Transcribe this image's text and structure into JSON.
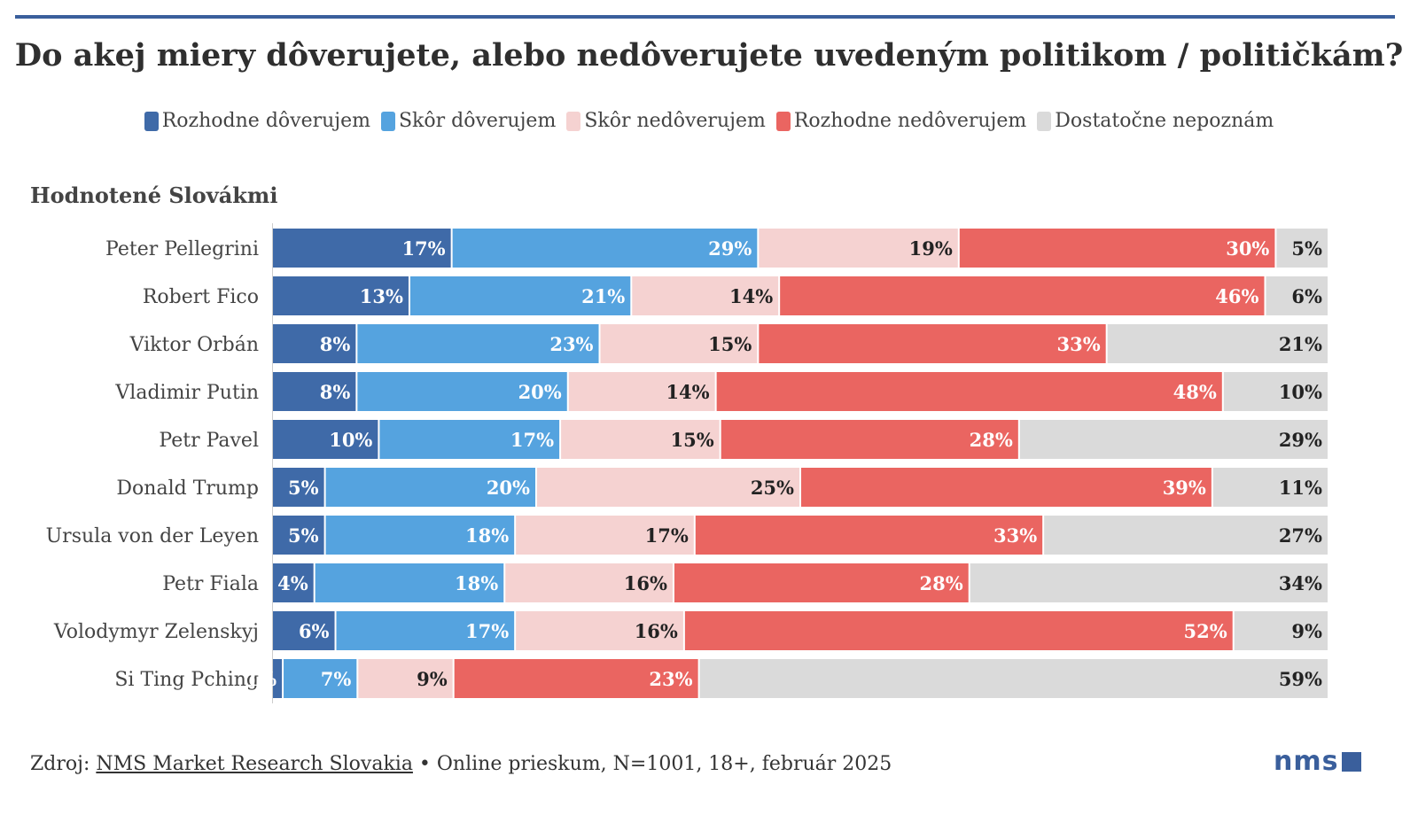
{
  "title": "Do akej miery dôverujete, alebo nedôverujete uvedeným politikom / političkám?",
  "subtitle": "Hodnotené Slovákmi",
  "colors": {
    "rozhodne_doverujem": "#3f6aa8",
    "skor_doverujem": "#55a3df",
    "skor_nedoverujem": "#f5d2d1",
    "rozhodne_nedoverujem": "#ea6561",
    "dostatocne_nepoznam": "#dadada"
  },
  "legend": [
    {
      "label": "Rozhodne dôverujem",
      "color": "#3f6aa8"
    },
    {
      "label": "Skôr dôverujem",
      "color": "#55a3df"
    },
    {
      "label": "Skôr nedôverujem",
      "color": "#f5d2d1"
    },
    {
      "label": "Rozhodne nedôverujem",
      "color": "#ea6561"
    },
    {
      "label": "Dostatočne nepoznám",
      "color": "#dadada"
    }
  ],
  "chart_data": {
    "type": "bar",
    "orientation": "horizontal",
    "stacked": true,
    "title": "Do akej miery dôverujete, alebo nedôverujete uvedeným politikom / političkám?",
    "subtitle": "Hodnotené Slovákmi",
    "unit": "%",
    "categories": [
      "Peter Pellegrini",
      "Robert Fico",
      "Viktor Orbán",
      "Vladimir Putin",
      "Petr Pavel",
      "Donald Trump",
      "Ursula von der Leyen",
      "Petr Fiala",
      "Volodymyr Zelenskyj",
      "Si Ting Pching"
    ],
    "series": [
      {
        "name": "Rozhodne dôverujem",
        "color": "#3f6aa8",
        "label_color": "#ffffff",
        "values": [
          17,
          13,
          8,
          8,
          10,
          5,
          5,
          4,
          6,
          1
        ]
      },
      {
        "name": "Skôr dôverujem",
        "color": "#55a3df",
        "label_color": "#ffffff",
        "values": [
          29,
          21,
          23,
          20,
          17,
          20,
          18,
          18,
          17,
          7
        ]
      },
      {
        "name": "Skôr nedôverujem",
        "color": "#f5d2d1",
        "label_color": "#222222",
        "values": [
          19,
          14,
          15,
          14,
          15,
          25,
          17,
          16,
          16,
          9
        ]
      },
      {
        "name": "Rozhodne nedôverujem",
        "color": "#ea6561",
        "label_color": "#ffffff",
        "values": [
          30,
          46,
          33,
          48,
          28,
          39,
          33,
          28,
          52,
          23
        ]
      },
      {
        "name": "Dostatočne nepoznám",
        "color": "#dadada",
        "label_color": "#222222",
        "values": [
          5,
          6,
          21,
          10,
          29,
          11,
          27,
          34,
          9,
          59
        ]
      }
    ],
    "hidden_labels": [
      [
        0,
        9
      ]
    ],
    "xlim": [
      0,
      100
    ]
  },
  "footer": {
    "prefix": "Zdroj: ",
    "link_text": "NMS Market Research Slovakia",
    "suffix": " • Online prieskum, N=1001, 18+, február 2025"
  },
  "logo": {
    "text": "nms"
  }
}
